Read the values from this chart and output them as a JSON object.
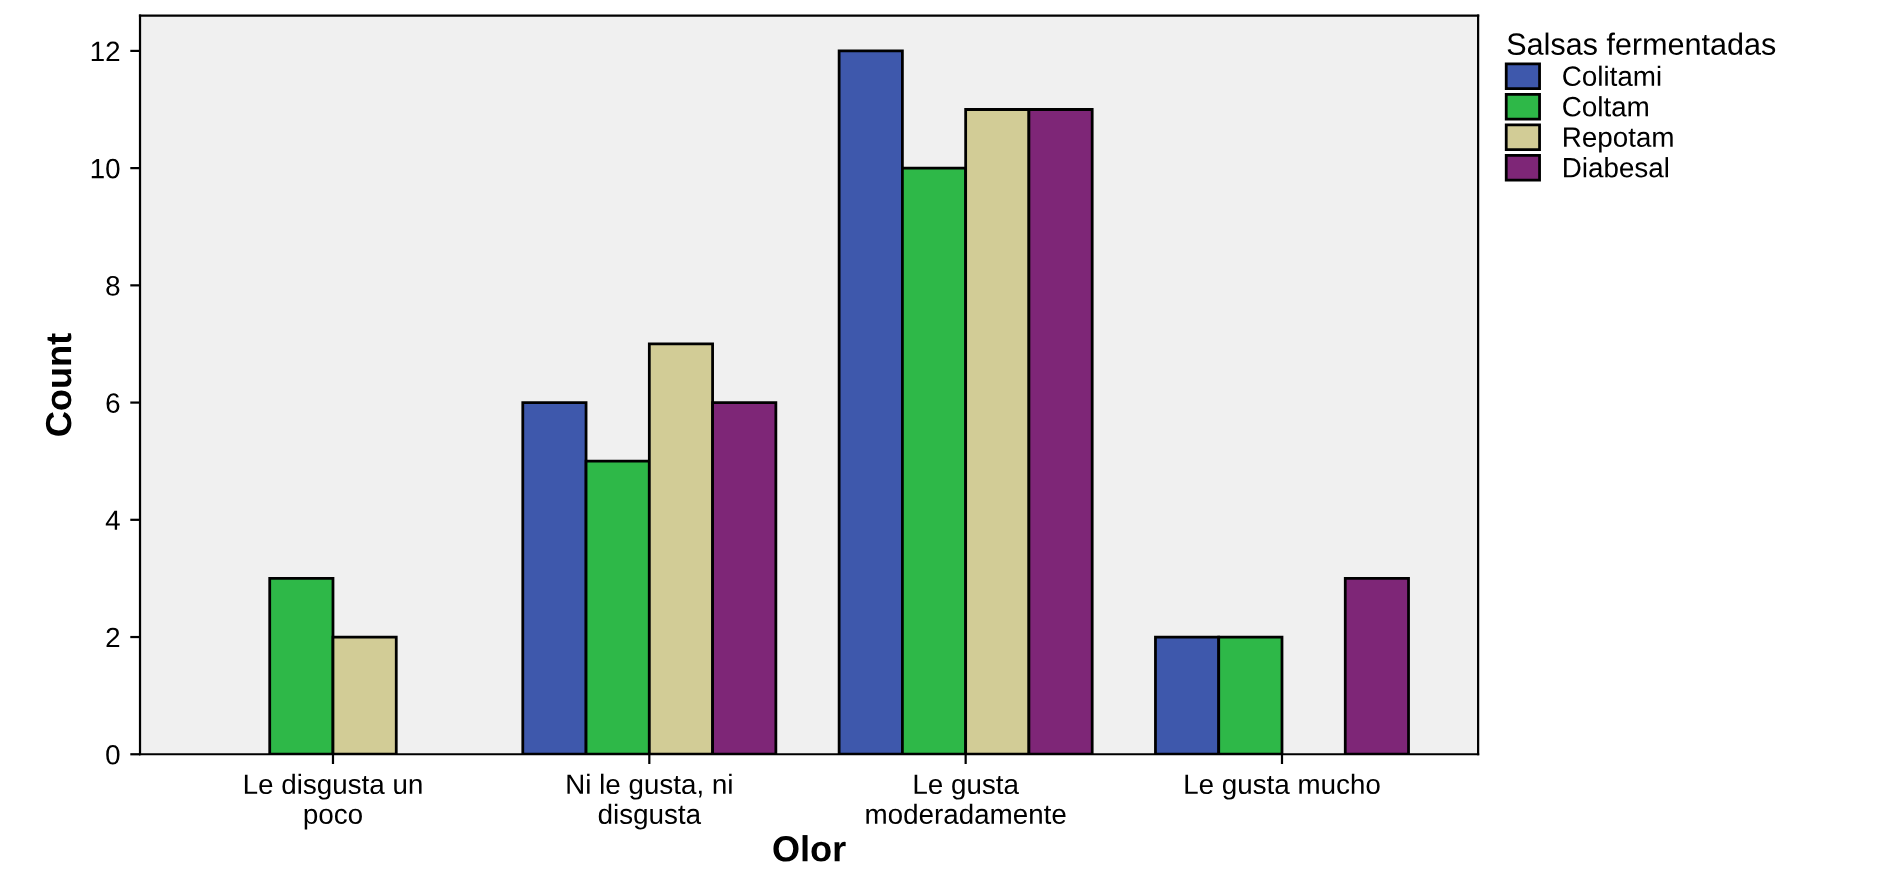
{
  "chart_data": {
    "type": "bar",
    "xlabel": "Olor",
    "ylabel": "Count",
    "legend_title": "Salsas fermentadas",
    "legend": "top right",
    "categories": [
      "Le disgusta un\npoco",
      "Ni le gusta, ni\ndisgusta",
      "Le gusta\nmoderadamente",
      "Le gusta mucho"
    ],
    "series": [
      {
        "name": "Colitami",
        "color": "#3e58ac",
        "values": [
          null,
          6,
          12,
          2
        ]
      },
      {
        "name": "Coltam",
        "color": "#2eb848",
        "values": [
          3,
          5,
          10,
          2
        ]
      },
      {
        "name": "Repotam",
        "color": "#d2cc96",
        "values": [
          2,
          7,
          11,
          null
        ]
      },
      {
        "name": "Diabesal",
        "color": "#7e2677",
        "values": [
          null,
          6,
          11,
          3
        ]
      }
    ],
    "ylim": [
      0,
      12.6
    ],
    "yticks": [
      0,
      2,
      4,
      6,
      8,
      10,
      12
    ],
    "grid": false
  }
}
